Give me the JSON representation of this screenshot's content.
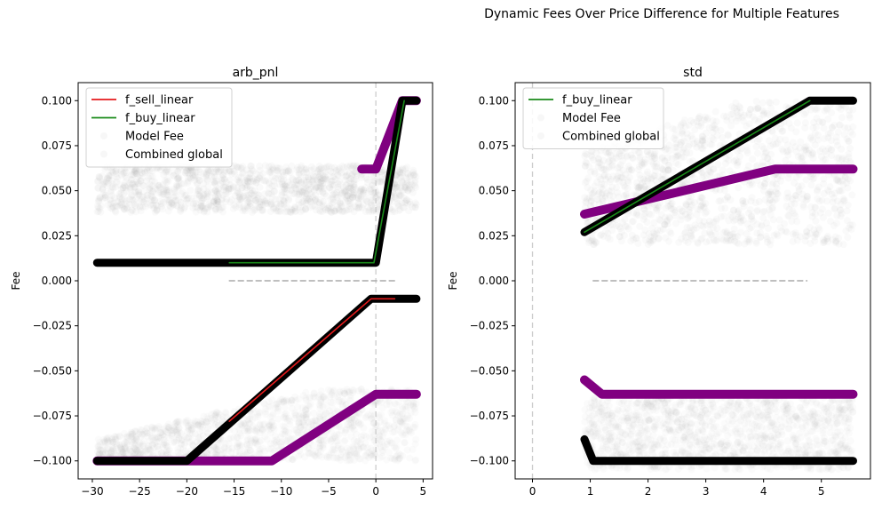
{
  "figure": {
    "title": "Dynamic Fees Over Price Difference for Multiple Features"
  },
  "chart_data": [
    {
      "type": "line",
      "title": "arb_pnl",
      "xlabel": "",
      "ylabel": "Fee",
      "xlim": [
        -31.5,
        6.0
      ],
      "ylim": [
        -0.11,
        0.11
      ],
      "xticks": [
        -30,
        -25,
        -20,
        -15,
        -10,
        -5,
        0,
        5
      ],
      "yticks": [
        -0.1,
        -0.075,
        -0.05,
        -0.025,
        0.0,
        0.025,
        0.05,
        0.075,
        0.1
      ],
      "ytick_labels": [
        "−0.100",
        "−0.075",
        "−0.050",
        "−0.025",
        "0.000",
        "0.025",
        "0.050",
        "0.075",
        "0.100"
      ],
      "xtick_labels": [
        "−30",
        "−25",
        "−20",
        "−15",
        "−10",
        "−5",
        "0",
        "5"
      ],
      "grid": false,
      "legend_position": "upper-left",
      "legend": [
        {
          "label": "f_sell_linear",
          "color": "#e41a1c",
          "kind": "line"
        },
        {
          "label": "f_buy_linear",
          "color": "#1a8a1a",
          "kind": "line"
        },
        {
          "label": "Model Fee",
          "color": "#cccccc",
          "kind": "marker"
        },
        {
          "label": "Combined global",
          "color": "#cccccc",
          "kind": "marker"
        }
      ],
      "series": [
        {
          "name": "f_sell_linear",
          "color": "#e41a1c",
          "x": [
            -15.5,
            -0.5,
            2.0
          ],
          "y": [
            -0.078,
            -0.01,
            -0.01
          ]
        },
        {
          "name": "f_buy_linear",
          "color": "#1a8a1a",
          "x": [
            -15.5,
            -0.2,
            3.0
          ],
          "y": [
            0.01,
            0.01,
            0.1
          ]
        },
        {
          "name": "Combined global (buy)",
          "color": "#000000",
          "x": [
            -29.5,
            0,
            2.8,
            4.3
          ],
          "y": [
            0.01,
            0.01,
            0.1,
            0.1
          ]
        },
        {
          "name": "Combined global (sell)",
          "color": "#000000",
          "x": [
            -29.5,
            -20,
            -0.5,
            4.3
          ],
          "y": [
            -0.1,
            -0.1,
            -0.01,
            -0.01
          ]
        },
        {
          "name": "Model Fee (buy)",
          "color": "#800080",
          "x": [
            -1.5,
            0,
            2.8,
            4.3
          ],
          "y": [
            0.062,
            0.062,
            0.1,
            0.1
          ]
        },
        {
          "name": "Model Fee (sell)",
          "color": "#800080",
          "x": [
            -29.5,
            -11,
            0,
            4.3
          ],
          "y": [
            -0.1,
            -0.1,
            -0.063,
            -0.063
          ]
        },
        {
          "name": "zero reference",
          "color": "#aaaaaa",
          "dashed": true,
          "x": [
            -15.5,
            2.0
          ],
          "y": [
            0.0,
            0.0
          ]
        }
      ],
      "vline_x": 0
    },
    {
      "type": "line",
      "title": "std",
      "xlabel": "",
      "ylabel": "Fee",
      "xlim": [
        -0.3,
        5.85
      ],
      "ylim": [
        -0.11,
        0.11
      ],
      "xticks": [
        0,
        1,
        2,
        3,
        4,
        5
      ],
      "yticks": [
        -0.1,
        -0.075,
        -0.05,
        -0.025,
        0.0,
        0.025,
        0.05,
        0.075,
        0.1
      ],
      "ytick_labels": [
        "−0.100",
        "−0.075",
        "−0.050",
        "−0.025",
        "0.000",
        "0.025",
        "0.050",
        "0.075",
        "0.100"
      ],
      "xtick_labels": [
        "0",
        "1",
        "2",
        "3",
        "4",
        "5"
      ],
      "grid": false,
      "legend_position": "upper-left",
      "legend": [
        {
          "label": "f_buy_linear",
          "color": "#1a8a1a",
          "kind": "line"
        },
        {
          "label": "Model Fee",
          "color": "#cccccc",
          "kind": "marker"
        },
        {
          "label": "Combined global",
          "color": "#cccccc",
          "kind": "marker"
        }
      ],
      "series": [
        {
          "name": "f_buy_linear",
          "color": "#1a8a1a",
          "x": [
            0.9,
            4.8
          ],
          "y": [
            0.027,
            0.1
          ]
        },
        {
          "name": "Combined global (buy)",
          "color": "#000000",
          "x": [
            0.9,
            4.8,
            5.55
          ],
          "y": [
            0.027,
            0.1,
            0.1
          ]
        },
        {
          "name": "Combined global (sell)",
          "color": "#000000",
          "x": [
            0.9,
            1.05,
            5.55
          ],
          "y": [
            -0.088,
            -0.1,
            -0.1
          ]
        },
        {
          "name": "Model Fee (buy)",
          "color": "#800080",
          "x": [
            0.9,
            4.2,
            5.55
          ],
          "y": [
            0.037,
            0.062,
            0.062
          ]
        },
        {
          "name": "Model Fee (sell)",
          "color": "#800080",
          "x": [
            0.9,
            1.2,
            5.55
          ],
          "y": [
            -0.055,
            -0.063,
            -0.063
          ]
        },
        {
          "name": "zero reference",
          "color": "#aaaaaa",
          "dashed": true,
          "x": [
            1.05,
            4.75
          ],
          "y": [
            0.0,
            0.0
          ]
        }
      ],
      "vline_x": 0
    }
  ]
}
